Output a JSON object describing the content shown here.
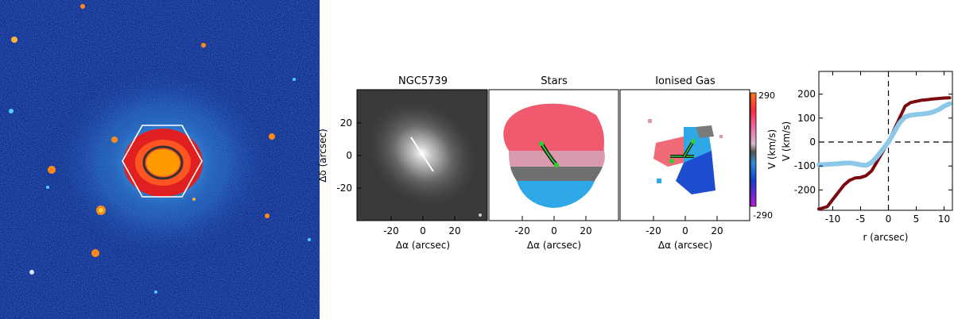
{
  "panels": {
    "optical": {},
    "maps": {
      "titles": [
        "NGC5739",
        "Stars",
        "Ionised Gas"
      ],
      "xlabel": "Δα  (arcsec)",
      "ylabel": "Δδ  (arcsec)",
      "xticks": [
        "-20",
        "0",
        "20"
      ],
      "yticks": [
        "20",
        "0",
        "-20"
      ],
      "colorbar": {
        "label": "V  (km/s)",
        "max": "290",
        "min": "-290"
      }
    }
  },
  "colors": {
    "background": "#0b2a8c",
    "stars_line": "#7b0a10",
    "gas_line": "#8cc9e8",
    "green_markers": "#2fd030",
    "hexagon": "#ffffff"
  },
  "chart_data": {
    "type": "line",
    "xlabel": "r (arcsec)",
    "ylabel": "V (km/s)",
    "xlim": [
      -12.5,
      11.5
    ],
    "ylim": [
      -285,
      295
    ],
    "xticks": [
      "-10",
      "-5",
      "0",
      "5",
      "10"
    ],
    "yticks": [
      "-200",
      "-100",
      "0",
      "100",
      "200"
    ],
    "series": [
      {
        "color": "#7b0a10",
        "x": [
          -12.5,
          -11,
          -10,
          -9,
          -8,
          -7,
          -6,
          -5,
          -4,
          -3,
          -2,
          -1,
          0,
          1,
          2,
          3,
          4,
          5,
          6,
          7,
          8,
          9,
          10,
          11
        ],
        "values": [
          -280,
          -270,
          -240,
          -210,
          -180,
          -160,
          -150,
          -148,
          -140,
          -120,
          -80,
          -40,
          0,
          50,
          100,
          150,
          165,
          170,
          175,
          177,
          180,
          182,
          184,
          185
        ]
      },
      {
        "color": "#8cc9e8",
        "x": [
          -12.5,
          -11,
          -10,
          -9,
          -8,
          -7,
          -6,
          -5,
          -4,
          -3,
          -2,
          -1,
          0,
          1,
          2,
          3,
          4,
          5,
          6,
          7,
          8,
          9,
          10,
          11
        ],
        "values": [
          -95,
          -93,
          -92,
          -90,
          -88,
          -87,
          -90,
          -95,
          -97,
          -85,
          -60,
          -30,
          0,
          40,
          80,
          105,
          112,
          115,
          117,
          120,
          125,
          135,
          150,
          160
        ]
      }
    ]
  }
}
